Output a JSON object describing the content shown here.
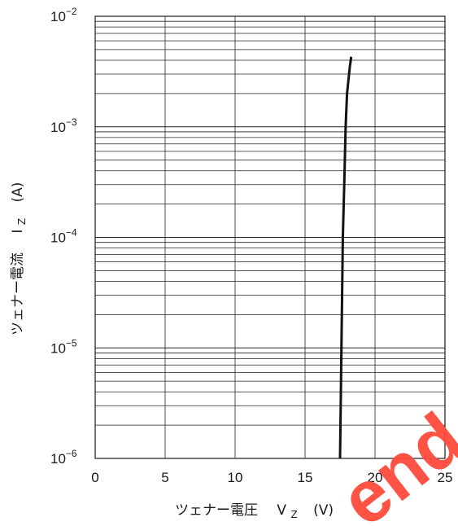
{
  "chart_data": {
    "type": "line",
    "xlabel": "ツェナー電圧",
    "xlabel_symbol": "V",
    "xlabel_sub": "Z",
    "xlabel_unit": "(V)",
    "ylabel": "ツェナー電流",
    "ylabel_symbol": "I",
    "ylabel_sub": "Z",
    "ylabel_unit": "(A)",
    "xlim": [
      0,
      25
    ],
    "x_ticks": [
      "0",
      "5",
      "10",
      "15",
      "20",
      "25"
    ],
    "ylim": [
      1e-06,
      0.01
    ],
    "y_scale": "log",
    "y_ticks": [
      {
        "base": "10",
        "exp": "−2",
        "value": 0.01
      },
      {
        "base": "10",
        "exp": "−3",
        "value": 0.001
      },
      {
        "base": "10",
        "exp": "−4",
        "value": 0.0001
      },
      {
        "base": "10",
        "exp": "−5",
        "value": 1e-05
      },
      {
        "base": "10",
        "exp": "−6",
        "value": 1e-06
      }
    ],
    "grid": true,
    "series": [
      {
        "points": [
          {
            "x": 17.5,
            "y": 1e-06
          },
          {
            "x": 17.6,
            "y": 1e-05
          },
          {
            "x": 17.7,
            "y": 0.0001
          },
          {
            "x": 17.8,
            "y": 0.0003
          },
          {
            "x": 17.9,
            "y": 0.001
          },
          {
            "x": 18.0,
            "y": 0.002
          },
          {
            "x": 18.2,
            "y": 0.0035
          },
          {
            "x": 18.3,
            "y": 0.0043
          }
        ]
      }
    ]
  },
  "watermark": {
    "text": "end",
    "color": "#ff4a3d"
  }
}
